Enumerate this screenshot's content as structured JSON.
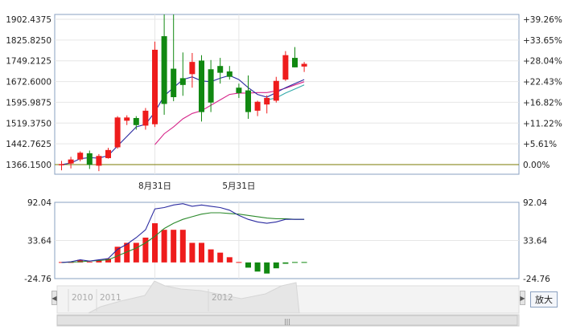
{
  "chart_data": [
    {
      "type": "candlestick",
      "title": "",
      "y_left_ticks": [
        "1902.4375",
        "1825.8250",
        "1749.2125",
        "1672.6000",
        "1595.9875",
        "1519.3750",
        "1442.7625",
        "1366.1500"
      ],
      "y_right_ticks": [
        "+39.26%",
        "+33.65%",
        "+28.04%",
        "+22.43%",
        "+16.82%",
        "+11.22%",
        "+5.61%",
        "0.00%"
      ],
      "x_tick_labels": [
        {
          "label": "8月31日",
          "index": 10
        },
        {
          "label": "5月31日",
          "index": 19
        }
      ],
      "ylim": [
        1340,
        1930
      ],
      "candles": [
        {
          "o": 1366,
          "h": 1380,
          "l": 1345,
          "c": 1368
        },
        {
          "o": 1370,
          "h": 1395,
          "l": 1352,
          "c": 1385
        },
        {
          "o": 1385,
          "h": 1415,
          "l": 1378,
          "c": 1410
        },
        {
          "o": 1408,
          "h": 1418,
          "l": 1350,
          "c": 1365
        },
        {
          "o": 1362,
          "h": 1405,
          "l": 1342,
          "c": 1398
        },
        {
          "o": 1390,
          "h": 1428,
          "l": 1388,
          "c": 1420
        },
        {
          "o": 1430,
          "h": 1545,
          "l": 1425,
          "c": 1540
        },
        {
          "o": 1528,
          "h": 1548,
          "l": 1512,
          "c": 1540
        },
        {
          "o": 1538,
          "h": 1545,
          "l": 1495,
          "c": 1512
        },
        {
          "o": 1510,
          "h": 1575,
          "l": 1495,
          "c": 1565
        },
        {
          "o": 1515,
          "h": 1820,
          "l": 1505,
          "c": 1790
        },
        {
          "o": 1840,
          "h": 1940,
          "l": 1550,
          "c": 1590
        },
        {
          "o": 1720,
          "h": 1920,
          "l": 1600,
          "c": 1615
        },
        {
          "o": 1685,
          "h": 1780,
          "l": 1620,
          "c": 1660
        },
        {
          "o": 1700,
          "h": 1778,
          "l": 1650,
          "c": 1745
        },
        {
          "o": 1750,
          "h": 1770,
          "l": 1525,
          "c": 1560
        },
        {
          "o": 1718,
          "h": 1752,
          "l": 1560,
          "c": 1595
        },
        {
          "o": 1730,
          "h": 1760,
          "l": 1665,
          "c": 1705
        },
        {
          "o": 1710,
          "h": 1730,
          "l": 1680,
          "c": 1690
        },
        {
          "o": 1650,
          "h": 1665,
          "l": 1612,
          "c": 1630
        },
        {
          "o": 1640,
          "h": 1695,
          "l": 1535,
          "c": 1560
        },
        {
          "o": 1565,
          "h": 1602,
          "l": 1545,
          "c": 1598
        },
        {
          "o": 1588,
          "h": 1622,
          "l": 1555,
          "c": 1612
        },
        {
          "o": 1602,
          "h": 1690,
          "l": 1595,
          "c": 1675
        },
        {
          "o": 1680,
          "h": 1785,
          "l": 1675,
          "c": 1770
        },
        {
          "o": 1760,
          "h": 1800,
          "l": 1725,
          "c": 1725
        },
        {
          "o": 1728,
          "h": 1745,
          "l": 1708,
          "c": 1738
        }
      ],
      "ma_short": [
        1366,
        1372,
        1388,
        1392,
        1390,
        1400,
        1435,
        1470,
        1505,
        1515,
        1560,
        1620,
        1650,
        1680,
        1690,
        1675,
        1672,
        1685,
        1695,
        1680,
        1650,
        1625,
        1615,
        1632,
        1650,
        1665,
        1680
      ],
      "ma_long": [
        null,
        null,
        null,
        null,
        null,
        null,
        null,
        null,
        null,
        null,
        1440,
        1480,
        1505,
        1535,
        1555,
        1565,
        1585,
        1605,
        1625,
        1630,
        1630,
        1632,
        1632,
        1638,
        1648,
        1660,
        1672
      ],
      "ma_mid": [
        null,
        null,
        null,
        null,
        null,
        null,
        null,
        null,
        null,
        null,
        null,
        null,
        null,
        null,
        null,
        null,
        null,
        null,
        null,
        null,
        null,
        null,
        1605,
        1612,
        1630,
        1645,
        1660
      ],
      "baseline_value": 1366.15,
      "colors": {
        "up": "#ee1c1c",
        "down": "#118811",
        "ma_short": "#2a2aa0",
        "ma_long": "#d6268a",
        "ma_mid": "#33aaaa",
        "baseline": "#7a7a00",
        "grid": "#e6e6e6",
        "frame": "#8aa0c0"
      }
    },
    {
      "type": "macd",
      "y_left_ticks": [
        "92.04",
        "33.64",
        "-24.76"
      ],
      "y_right_ticks": [
        "92.04",
        "33.64",
        "-24.76"
      ],
      "ylim": [
        -24.76,
        92.04
      ],
      "histogram": [
        0,
        0,
        4,
        1,
        3,
        6,
        24,
        30,
        30,
        38,
        60,
        50,
        50,
        50,
        30,
        30,
        20,
        15,
        8,
        0,
        -8,
        -14,
        -17,
        -9,
        -2,
        -0.5,
        -0.3
      ],
      "dif": [
        0,
        1,
        4,
        2,
        4,
        6,
        20,
        28,
        38,
        50,
        82,
        84,
        88,
        90,
        86,
        88,
        86,
        84,
        80,
        72,
        66,
        62,
        60,
        62,
        66,
        66,
        66
      ],
      "dea": [
        0,
        0.5,
        1,
        2,
        3,
        4,
        10,
        16,
        22,
        30,
        40,
        52,
        60,
        66,
        70,
        74,
        76,
        76,
        75,
        74,
        72,
        70,
        68,
        67,
        67,
        66,
        66
      ],
      "colors": {
        "up": "#ee1c1c",
        "down": "#118811",
        "dif": "#2a2aa0",
        "dea": "#2c8a2c"
      }
    }
  ],
  "navigator": {
    "year_labels": [
      "2010",
      "2011",
      "2012"
    ],
    "zoom_label": "放大",
    "scroll_grip": "|||"
  }
}
